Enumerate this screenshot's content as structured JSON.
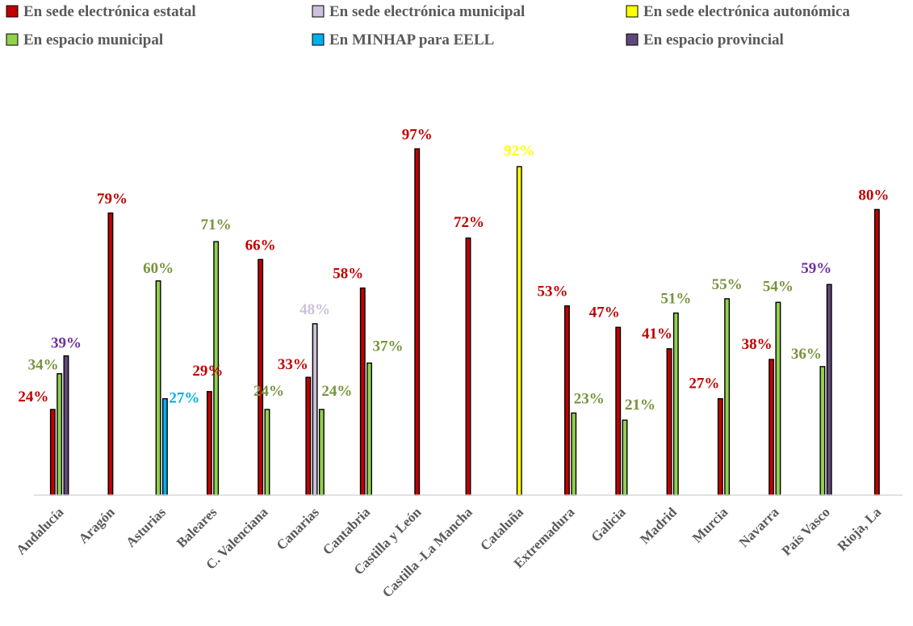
{
  "chart_data": {
    "type": "bar",
    "title": "",
    "xlabel": "",
    "ylabel": "",
    "ylim": [
      0,
      100
    ],
    "grid": false,
    "legend_position": "top",
    "value_suffix": "%",
    "categories": [
      "Andalucía",
      "Aragón",
      "Asturias",
      "Baleares",
      "C. Valenciana",
      "Canarias",
      "Cantabria",
      "Castilla y León",
      "Castilla -La Mancha",
      "Cataluña",
      "Extremadura",
      "Galicia",
      "Madrid",
      "Murcia",
      "Navarra",
      "País Vasco",
      "Rioja, La"
    ],
    "series": [
      {
        "name": "En sede electrónica estatal",
        "color": "#c00000",
        "label_color": "#c00000",
        "values": [
          24,
          79,
          null,
          29,
          66,
          33,
          58,
          97,
          72,
          null,
          53,
          47,
          41,
          27,
          38,
          null,
          80
        ]
      },
      {
        "name": "En sede electrónica municipal",
        "color": "#ccc0da",
        "label_color": "#ccc0da",
        "values": [
          null,
          null,
          null,
          null,
          null,
          48,
          null,
          null,
          null,
          null,
          null,
          null,
          null,
          null,
          null,
          null,
          null
        ]
      },
      {
        "name": "En sede electrónica autonómica",
        "color": "#ffff00",
        "label_color": "#ffff00",
        "values": [
          null,
          null,
          null,
          null,
          null,
          null,
          null,
          null,
          null,
          92,
          null,
          null,
          null,
          null,
          null,
          null,
          null
        ]
      },
      {
        "name": "En espacio municipal",
        "color": "#92d050",
        "label_color": "#77933c",
        "values": [
          34,
          null,
          60,
          71,
          24,
          24,
          37,
          null,
          null,
          null,
          23,
          21,
          51,
          55,
          54,
          36,
          null
        ]
      },
      {
        "name": "En MINHAP para EELL",
        "color": "#00b0f0",
        "label_color": "#00b0f0",
        "values": [
          null,
          null,
          27,
          null,
          null,
          null,
          null,
          null,
          null,
          null,
          null,
          null,
          null,
          null,
          null,
          null,
          null
        ]
      },
      {
        "name": "En espacio provincial",
        "color": "#60497a",
        "label_color": "#7030a0",
        "values": [
          39,
          null,
          null,
          null,
          null,
          null,
          null,
          null,
          null,
          null,
          null,
          null,
          null,
          null,
          null,
          59,
          null
        ]
      }
    ]
  }
}
